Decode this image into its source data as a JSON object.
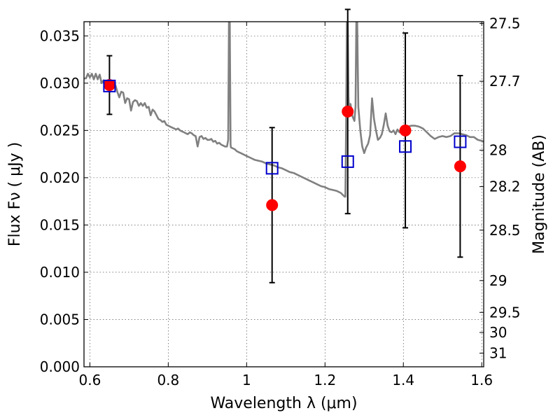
{
  "chart_data": {
    "type": "scatter",
    "xlabel": "Wavelength  λ (μm)",
    "ylabel": "Flux  Fν  ( μJy )",
    "ylabel_right": "Magnitude (AB)",
    "xlim": [
      0.585,
      1.605
    ],
    "ylim": [
      0.0,
      0.0365
    ],
    "grid": true,
    "x_ticks": [
      {
        "value": 0.6,
        "label": "0.6"
      },
      {
        "value": 0.8,
        "label": "0.8"
      },
      {
        "value": 1.0,
        "label": "1"
      },
      {
        "value": 1.2,
        "label": "1.2"
      },
      {
        "value": 1.4,
        "label": "1.4"
      },
      {
        "value": 1.6,
        "label": "1.6"
      }
    ],
    "y_ticks": [
      {
        "value": 0.0,
        "label": "0.000"
      },
      {
        "value": 0.005,
        "label": "0.005"
      },
      {
        "value": 0.01,
        "label": "0.010"
      },
      {
        "value": 0.015,
        "label": "0.015"
      },
      {
        "value": 0.02,
        "label": "0.020"
      },
      {
        "value": 0.025,
        "label": "0.025"
      },
      {
        "value": 0.03,
        "label": "0.030"
      },
      {
        "value": 0.035,
        "label": "0.035"
      }
    ],
    "right_ticks": [
      {
        "magnitude": 27.5,
        "label": "27.5"
      },
      {
        "magnitude": 27.7,
        "label": "27.7"
      },
      {
        "magnitude": 28.0,
        "label": "28"
      },
      {
        "magnitude": 28.2,
        "label": "28.2"
      },
      {
        "magnitude": 28.5,
        "label": "28.5"
      },
      {
        "magnitude": 29.0,
        "label": "29"
      },
      {
        "magnitude": 29.5,
        "label": "29.5"
      },
      {
        "magnitude": 30.0,
        "label": "30"
      },
      {
        "magnitude": 31.0,
        "label": "31"
      }
    ],
    "model_spectrum": {
      "color": "#808080",
      "points": [
        [
          0.585,
          0.0305
        ],
        [
          0.59,
          0.0305
        ],
        [
          0.595,
          0.031
        ],
        [
          0.6,
          0.0306
        ],
        [
          0.605,
          0.031
        ],
        [
          0.61,
          0.0304
        ],
        [
          0.615,
          0.031
        ],
        [
          0.62,
          0.0304
        ],
        [
          0.625,
          0.0309
        ],
        [
          0.63,
          0.03
        ],
        [
          0.635,
          0.0303
        ],
        [
          0.64,
          0.0298
        ],
        [
          0.645,
          0.03
        ],
        [
          0.65,
          0.0302
        ],
        [
          0.655,
          0.0297
        ],
        [
          0.66,
          0.0296
        ],
        [
          0.665,
          0.0298
        ],
        [
          0.67,
          0.0291
        ],
        [
          0.675,
          0.0285
        ],
        [
          0.68,
          0.0291
        ],
        [
          0.685,
          0.029
        ],
        [
          0.69,
          0.0279
        ],
        [
          0.695,
          0.0284
        ],
        [
          0.7,
          0.0283
        ],
        [
          0.705,
          0.0271
        ],
        [
          0.71,
          0.028
        ],
        [
          0.715,
          0.0282
        ],
        [
          0.72,
          0.0281
        ],
        [
          0.725,
          0.0276
        ],
        [
          0.73,
          0.0279
        ],
        [
          0.735,
          0.0276
        ],
        [
          0.74,
          0.0279
        ],
        [
          0.745,
          0.0274
        ],
        [
          0.75,
          0.0275
        ],
        [
          0.755,
          0.0266
        ],
        [
          0.76,
          0.0272
        ],
        [
          0.765,
          0.027
        ],
        [
          0.77,
          0.0266
        ],
        [
          0.775,
          0.0262
        ],
        [
          0.78,
          0.0261
        ],
        [
          0.785,
          0.0259
        ],
        [
          0.79,
          0.026
        ],
        [
          0.795,
          0.0256
        ],
        [
          0.8,
          0.0255
        ],
        [
          0.805,
          0.0254
        ],
        [
          0.81,
          0.0253
        ],
        [
          0.815,
          0.0252
        ],
        [
          0.82,
          0.0251
        ],
        [
          0.825,
          0.0252
        ],
        [
          0.83,
          0.025
        ],
        [
          0.835,
          0.0249
        ],
        [
          0.84,
          0.0248
        ],
        [
          0.845,
          0.0247
        ],
        [
          0.85,
          0.0246
        ],
        [
          0.855,
          0.0248
        ],
        [
          0.86,
          0.0247
        ],
        [
          0.865,
          0.0245
        ],
        [
          0.87,
          0.0244
        ],
        [
          0.875,
          0.0233
        ],
        [
          0.88,
          0.0243
        ],
        [
          0.885,
          0.0244
        ],
        [
          0.89,
          0.0241
        ],
        [
          0.895,
          0.0242
        ],
        [
          0.9,
          0.024
        ],
        [
          0.905,
          0.024
        ],
        [
          0.91,
          0.0241
        ],
        [
          0.915,
          0.0238
        ],
        [
          0.92,
          0.0239
        ],
        [
          0.925,
          0.0236
        ],
        [
          0.93,
          0.0237
        ],
        [
          0.935,
          0.0235
        ],
        [
          0.94,
          0.0234
        ],
        [
          0.945,
          0.0233
        ],
        [
          0.95,
          0.0233
        ],
        [
          0.953,
          0.024
        ],
        [
          0.955,
          0.037
        ],
        [
          0.957,
          0.037
        ],
        [
          0.959,
          0.0235
        ],
        [
          0.96,
          0.0232
        ],
        [
          0.965,
          0.0231
        ],
        [
          0.97,
          0.023
        ],
        [
          0.975,
          0.0228
        ],
        [
          0.98,
          0.0227
        ],
        [
          0.985,
          0.0226
        ],
        [
          0.99,
          0.0225
        ],
        [
          0.995,
          0.0224
        ],
        [
          1.0,
          0.0223
        ],
        [
          1.01,
          0.0221
        ],
        [
          1.02,
          0.0219
        ],
        [
          1.03,
          0.0218
        ],
        [
          1.04,
          0.0217
        ],
        [
          1.05,
          0.0215
        ],
        [
          1.06,
          0.0214
        ],
        [
          1.07,
          0.0213
        ],
        [
          1.08,
          0.0211
        ],
        [
          1.09,
          0.021
        ],
        [
          1.1,
          0.0208
        ],
        [
          1.11,
          0.0206
        ],
        [
          1.12,
          0.0205
        ],
        [
          1.13,
          0.0203
        ],
        [
          1.14,
          0.0201
        ],
        [
          1.15,
          0.0199
        ],
        [
          1.16,
          0.0197
        ],
        [
          1.17,
          0.0195
        ],
        [
          1.18,
          0.0193
        ],
        [
          1.19,
          0.0191
        ],
        [
          1.2,
          0.019
        ],
        [
          1.21,
          0.0188
        ],
        [
          1.22,
          0.0187
        ],
        [
          1.23,
          0.0186
        ],
        [
          1.24,
          0.0184
        ],
        [
          1.245,
          0.0182
        ],
        [
          1.25,
          0.018
        ],
        [
          1.252,
          0.018
        ],
        [
          1.254,
          0.026
        ],
        [
          1.256,
          0.037
        ],
        [
          1.258,
          0.037
        ],
        [
          1.26,
          0.0285
        ],
        [
          1.262,
          0.027
        ],
        [
          1.265,
          0.0278
        ],
        [
          1.27,
          0.0265
        ],
        [
          1.275,
          0.026
        ],
        [
          1.278,
          0.0275
        ],
        [
          1.28,
          0.037
        ],
        [
          1.282,
          0.037
        ],
        [
          1.285,
          0.0275
        ],
        [
          1.29,
          0.025
        ],
        [
          1.295,
          0.0233
        ],
        [
          1.3,
          0.0226
        ],
        [
          1.305,
          0.0232
        ],
        [
          1.31,
          0.0236
        ],
        [
          1.315,
          0.0245
        ],
        [
          1.32,
          0.0284
        ],
        [
          1.325,
          0.0262
        ],
        [
          1.33,
          0.025
        ],
        [
          1.335,
          0.024
        ],
        [
          1.34,
          0.0242
        ],
        [
          1.345,
          0.0246
        ],
        [
          1.35,
          0.0256
        ],
        [
          1.355,
          0.0268
        ],
        [
          1.36,
          0.0255
        ],
        [
          1.365,
          0.0249
        ],
        [
          1.37,
          0.0248
        ],
        [
          1.375,
          0.025
        ],
        [
          1.38,
          0.0246
        ],
        [
          1.385,
          0.0251
        ],
        [
          1.39,
          0.0248
        ],
        [
          1.395,
          0.025
        ],
        [
          1.4,
          0.0252
        ],
        [
          1.405,
          0.0253
        ],
        [
          1.41,
          0.0254
        ],
        [
          1.42,
          0.0255
        ],
        [
          1.43,
          0.0255
        ],
        [
          1.44,
          0.0254
        ],
        [
          1.45,
          0.0252
        ],
        [
          1.46,
          0.0248
        ],
        [
          1.47,
          0.0244
        ],
        [
          1.48,
          0.0241
        ],
        [
          1.49,
          0.0243
        ],
        [
          1.5,
          0.0244
        ],
        [
          1.51,
          0.0243
        ],
        [
          1.52,
          0.0244
        ],
        [
          1.53,
          0.0247
        ],
        [
          1.54,
          0.0247
        ],
        [
          1.55,
          0.0246
        ],
        [
          1.56,
          0.0245
        ],
        [
          1.57,
          0.0243
        ],
        [
          1.58,
          0.0243
        ],
        [
          1.59,
          0.024
        ],
        [
          1.6,
          0.0239
        ],
        [
          1.605,
          0.0238
        ]
      ]
    },
    "observed": {
      "color": "#ff0000",
      "points": [
        {
          "x": 0.65,
          "y": 0.0298,
          "err": 0.0031
        },
        {
          "x": 1.065,
          "y": 0.0171,
          "err": 0.0082
        },
        {
          "x": 1.258,
          "y": 0.027,
          "err": 0.0108
        },
        {
          "x": 1.405,
          "y": 0.025,
          "err": 0.0103
        },
        {
          "x": 1.545,
          "y": 0.0212,
          "err": 0.0096
        }
      ]
    },
    "model_photometry": {
      "color": "#0000cc",
      "points": [
        {
          "x": 0.65,
          "y": 0.0297
        },
        {
          "x": 1.065,
          "y": 0.021
        },
        {
          "x": 1.258,
          "y": 0.0217
        },
        {
          "x": 1.405,
          "y": 0.0233
        },
        {
          "x": 1.545,
          "y": 0.0238
        }
      ]
    }
  }
}
